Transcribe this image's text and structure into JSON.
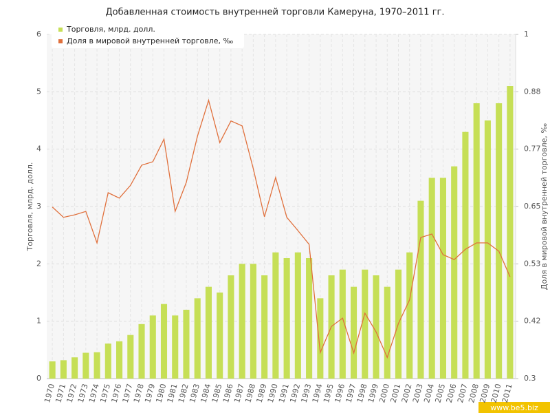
{
  "chart_data": {
    "type": "bar-line",
    "title": "Добавленная стоимость внутренней торговли Камеруна, 1970–2011 гг.",
    "y_label": "Торговля, млрд. долл.",
    "y2_label": "Доля в мировой внутренней торговле, ‰",
    "watermark": "www.be5.biz",
    "categories": [
      "1970",
      "1971",
      "1972",
      "1973",
      "1974",
      "1975",
      "1976",
      "1977",
      "1978",
      "1979",
      "1980",
      "1981",
      "1982",
      "1983",
      "1984",
      "1985",
      "1986",
      "1987",
      "1988",
      "1989",
      "1990",
      "1991",
      "1992",
      "1993",
      "1994",
      "1995",
      "1996",
      "1997",
      "1998",
      "1999",
      "2000",
      "2001",
      "2002",
      "2003",
      "2004",
      "2005",
      "2006",
      "2007",
      "2008",
      "2009",
      "2010",
      "2011"
    ],
    "series": [
      {
        "name": "Торговля, млрд. долл.",
        "type": "bar",
        "color": "#c6df56",
        "values": [
          0.3,
          0.32,
          0.37,
          0.45,
          0.46,
          0.61,
          0.65,
          0.76,
          0.95,
          1.1,
          1.3,
          1.1,
          1.2,
          1.4,
          1.6,
          1.5,
          1.8,
          2.0,
          2.0,
          1.8,
          2.2,
          2.1,
          2.2,
          2.1,
          1.4,
          1.8,
          1.9,
          1.6,
          1.9,
          1.8,
          1.6,
          1.9,
          2.2,
          3.1,
          3.5,
          3.5,
          3.7,
          4.3,
          4.8,
          4.5,
          4.8,
          5.1
        ]
      },
      {
        "name": "Доля в мировой внутренней торговле, ‰",
        "type": "line",
        "axis": "y2",
        "color": "#e0703c",
        "values": [
          0.649,
          0.628,
          0.633,
          0.64,
          0.576,
          0.678,
          0.667,
          0.693,
          0.734,
          0.741,
          0.787,
          0.64,
          0.699,
          0.793,
          0.866,
          0.78,
          0.824,
          0.814,
          0.727,
          0.629,
          0.709,
          0.628,
          0.601,
          0.573,
          0.353,
          0.406,
          0.423,
          0.352,
          0.433,
          0.395,
          0.343,
          0.412,
          0.46,
          0.587,
          0.594,
          0.552,
          0.542,
          0.563,
          0.576,
          0.576,
          0.559,
          0.507
        ]
      }
    ],
    "ylim": [
      0,
      6
    ],
    "yticks": [
      0,
      1,
      2,
      3,
      4,
      5,
      6
    ],
    "y2lim": [
      0.3,
      1
    ],
    "y2ticks": [
      0.3,
      {
        "value": 0.4167,
        "label": "0.42"
      },
      {
        "value": 0.5333,
        "label": "0.53"
      },
      0.65,
      {
        "value": 0.7667,
        "label": "0.77"
      },
      {
        "value": 0.8833,
        "label": "0.88"
      },
      1
    ],
    "grid": true,
    "legend": "top-left"
  }
}
